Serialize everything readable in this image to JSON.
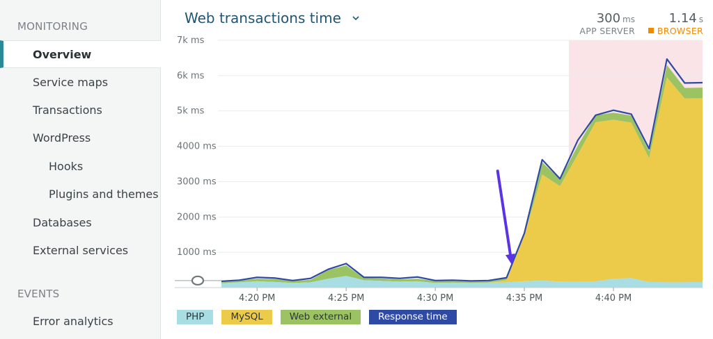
{
  "sidebar": {
    "monitoring_header": "MONITORING",
    "items": [
      {
        "label": "Overview",
        "active": true
      },
      {
        "label": "Service maps"
      },
      {
        "label": "Transactions"
      },
      {
        "label": "WordPress"
      },
      {
        "label": "Hooks",
        "sub": true
      },
      {
        "label": "Plugins and themes",
        "sub": true
      },
      {
        "label": "Databases"
      },
      {
        "label": "External services"
      }
    ],
    "events_header": "EVENTS",
    "events_items": [
      {
        "label": "Error analytics"
      }
    ]
  },
  "header": {
    "title": "Web transactions time",
    "app_server": {
      "value": "300",
      "unit": "ms",
      "label": "APP SERVER"
    },
    "browser": {
      "value": "1.14",
      "unit": "s",
      "label": "BROWSER"
    }
  },
  "colors": {
    "php": "#a7dde3",
    "mysql": "#eccb4a",
    "web_external": "#9bc363",
    "response_time": "#2f4aa4",
    "highlight": "#fbe4e8",
    "arrow": "#5a33e6"
  },
  "chart_data": {
    "type": "area",
    "ylim": [
      0,
      7000
    ],
    "yticks": [
      {
        "value": 1000,
        "label": "1000 ms"
      },
      {
        "value": 2000,
        "label": "2000 ms"
      },
      {
        "value": 3000,
        "label": "3000 ms"
      },
      {
        "value": 4000,
        "label": "4000 ms"
      },
      {
        "value": 5000,
        "label": "5k ms"
      },
      {
        "value": 6000,
        "label": "6k ms"
      },
      {
        "value": 7000,
        "label": "7k ms"
      }
    ],
    "xticks": [
      {
        "t": 4.2,
        "label": "4:20 PM"
      },
      {
        "t": 4.25,
        "label": "4:25 PM"
      },
      {
        "t": 4.3,
        "label": "4:30 PM"
      },
      {
        "t": 4.35,
        "label": "4:35 PM"
      },
      {
        "t": 4.4,
        "label": "4:40 PM"
      }
    ],
    "x_minutes": [
      4.18,
      4.19,
      4.2,
      4.21,
      4.22,
      4.23,
      4.24,
      4.25,
      4.26,
      4.27,
      4.28,
      4.29,
      4.3,
      4.31,
      4.32,
      4.33,
      4.34,
      4.35,
      4.36,
      4.37,
      4.38,
      4.39,
      4.4,
      4.41,
      4.42,
      4.43,
      4.44,
      4.45
    ],
    "series": [
      {
        "name": "PHP",
        "values": [
          120,
          150,
          180,
          160,
          130,
          150,
          250,
          330,
          210,
          190,
          170,
          180,
          130,
          140,
          130,
          140,
          150,
          180,
          200,
          170,
          170,
          180,
          250,
          270,
          160,
          150,
          150,
          160
        ]
      },
      {
        "name": "MySQL",
        "values": [
          0,
          0,
          0,
          0,
          0,
          0,
          0,
          0,
          0,
          0,
          0,
          0,
          0,
          0,
          0,
          0,
          60,
          1300,
          3000,
          2700,
          3600,
          4500,
          4500,
          4400,
          3500,
          5800,
          5200,
          5200
        ]
      },
      {
        "name": "Web external",
        "values": [
          50,
          50,
          70,
          80,
          60,
          70,
          250,
          300,
          60,
          70,
          60,
          70,
          60,
          50,
          50,
          50,
          60,
          60,
          350,
          200,
          250,
          200,
          200,
          200,
          200,
          350,
          300,
          300
        ]
      },
      {
        "name": "Response time",
        "values": [
          180,
          210,
          290,
          270,
          200,
          260,
          520,
          680,
          290,
          290,
          260,
          300,
          200,
          210,
          190,
          200,
          280,
          1540,
          3620,
          3080,
          4170,
          4880,
          5020,
          4910,
          3930,
          6470,
          5790,
          5800
        ]
      }
    ],
    "highlight_from": 4.375,
    "arrow_annotation": {
      "from_t": 4.335,
      "from_v": 3300,
      "to_t": 4.343,
      "to_v": 650
    }
  },
  "legend": [
    {
      "label": "PHP",
      "color_key": "php"
    },
    {
      "label": "MySQL",
      "color_key": "mysql"
    },
    {
      "label": "Web external",
      "color_key": "web_external"
    },
    {
      "label": "Response time",
      "color_key": "response_time"
    }
  ]
}
